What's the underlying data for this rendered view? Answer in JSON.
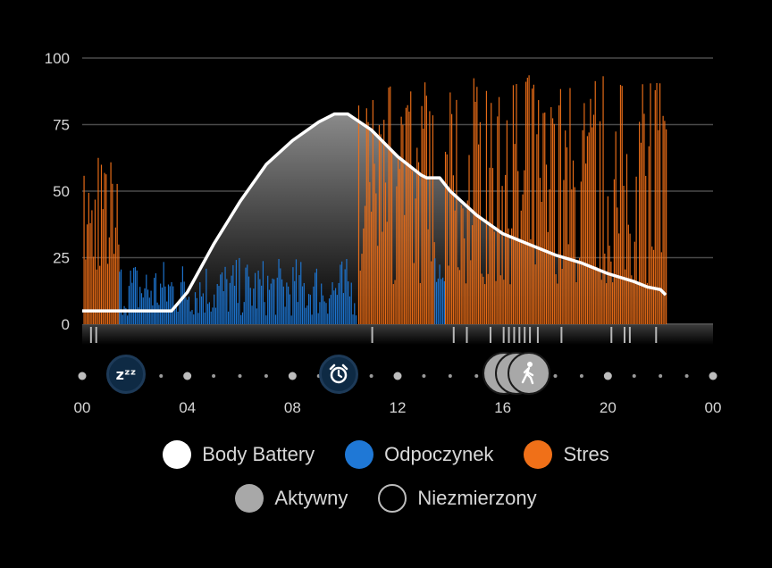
{
  "chart_data": {
    "type": "bar",
    "y_ticks": [
      "100",
      "75",
      "50",
      "25",
      "0"
    ],
    "ylim": [
      0,
      100
    ],
    "x_ticks": [
      "00",
      "04",
      "08",
      "12",
      "16",
      "20",
      "00"
    ],
    "x_range_hours": [
      0,
      24
    ],
    "colors": {
      "body_battery": "#ffffff",
      "rest": "#1f78d6",
      "stress": "#f07018",
      "active": "#a8a8a8",
      "unmeasured": "#000000",
      "grid": "#4a4a4a"
    },
    "body_battery_series": {
      "x_hours": [
        0,
        1,
        2,
        3,
        3.4,
        4,
        5,
        6,
        7,
        8,
        9,
        9.6,
        10.1,
        11,
        12,
        12.9,
        13.1,
        13.6,
        14,
        15,
        16,
        17,
        18,
        19,
        20,
        21,
        21.5,
        22,
        22.2
      ],
      "y": [
        5,
        5,
        5,
        5,
        5,
        12,
        30,
        46,
        60,
        69,
        76,
        79,
        79,
        73,
        63,
        56,
        55,
        55,
        50,
        41,
        34,
        30,
        26,
        23,
        19,
        16,
        14,
        13,
        11
      ]
    },
    "stress_segments": [
      {
        "start_hour": 0.05,
        "end_hour": 1.4,
        "min": 20,
        "max": 65
      },
      {
        "start_hour": 10.5,
        "end_hour": 13.4,
        "min": 15,
        "max": 91
      },
      {
        "start_hour": 13.8,
        "end_hour": 22.2,
        "min": 15,
        "max": 94
      }
    ],
    "rest_segments": [
      {
        "start_hour": 1.4,
        "end_hour": 10.4,
        "min": 3,
        "max": 25
      },
      {
        "start_hour": 13.4,
        "end_hour": 13.8,
        "min": 15,
        "max": 27
      }
    ],
    "activity_ticks_hours": [
      0.3,
      0.5,
      11.0,
      14.1,
      14.6,
      15.5,
      16.0,
      16.2,
      16.4,
      16.6,
      16.8,
      17.0,
      17.3,
      18.2,
      20.1,
      20.6,
      20.8,
      21.8
    ]
  },
  "markers": {
    "sleep_icon": "sleep-zzz-icon",
    "alarm_icon": "alarm-clock-icon",
    "activity_icon": "walking-person-icon",
    "sleep_label": "zᶻᶻ"
  },
  "legend": {
    "body_battery": "Body Battery",
    "rest": "Odpoczynek",
    "stress": "Stres",
    "active": "Aktywny",
    "unmeasured": "Niezmierzony"
  }
}
